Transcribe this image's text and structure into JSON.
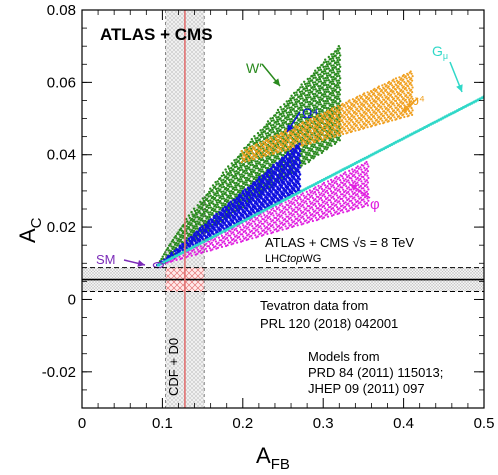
{
  "chart_data": {
    "type": "scatter",
    "title": "ATLAS + CMS",
    "xlabel": "A",
    "xlabel_sub": "FB",
    "ylabel": "A",
    "ylabel_sub": "C",
    "xlim": [
      0,
      0.5
    ],
    "ylim": [
      -0.03,
      0.08
    ],
    "xticks": [
      {
        "v": 0,
        "label": "0"
      },
      {
        "v": 0.1,
        "label": "0.1"
      },
      {
        "v": 0.2,
        "label": "0.2"
      },
      {
        "v": 0.3,
        "label": "0.3"
      },
      {
        "v": 0.4,
        "label": "0.4"
      },
      {
        "v": 0.5,
        "label": "0.5"
      }
    ],
    "yticks": [
      {
        "v": -0.02,
        "label": "-0.02"
      },
      {
        "v": 0,
        "label": "0"
      },
      {
        "v": 0.02,
        "label": "0.02"
      },
      {
        "v": 0.04,
        "label": "0.04"
      },
      {
        "v": 0.06,
        "label": "0.06"
      },
      {
        "v": 0.08,
        "label": "0.08"
      }
    ],
    "grid": false,
    "measurements": {
      "lhc_value": 0.0055,
      "lhc_band": [
        0.0022,
        0.0088
      ],
      "tevatron_value": 0.128,
      "tevatron_band": [
        0.104,
        0.152
      ],
      "sm_point": {
        "x": 0.095,
        "y": 0.0095
      }
    },
    "series": [
      {
        "name": "W′",
        "color": "#2a8a1e",
        "x_range": [
          0.095,
          0.32
        ],
        "y_low_end": 0.044,
        "y_high_end": 0.07
      },
      {
        "name": "Ω⁴",
        "color": "#1010e0",
        "x_range": [
          0.095,
          0.27
        ],
        "y_low_end": 0.03,
        "y_high_end": 0.043
      },
      {
        "name": "ω⁴",
        "color": "#f0a020",
        "x_range": [
          0.2,
          0.41
        ],
        "y_low_end": 0.038,
        "y_high_end": 0.063
      },
      {
        "name": "φ",
        "color": "#e020e0",
        "x_range": [
          0.095,
          0.355
        ],
        "y_low_end": 0.026,
        "y_high_end": 0.038
      },
      {
        "name": "G",
        "name_sub": "μ",
        "color": "#30d8c8",
        "x_range": [
          0.095,
          0.5
        ],
        "y_low_end": 0.056,
        "y_high_end": 0.056
      }
    ],
    "annotations": {
      "sm": "SM",
      "lhc_l1": "ATLAS + CMS √s = 8 TeV",
      "lhc_l2_pre": "LHC",
      "lhc_l2_it": "top",
      "lhc_l2_post": "WG",
      "tev_l1": "Tevatron data from",
      "tev_l2": "PRL 120 (2018) 042001",
      "models_l1": "Models from",
      "models_l2": "PRD 84 (2011) 115013;",
      "models_l3": "JHEP 09 (2011) 097",
      "cdf": "CDF + D0"
    }
  }
}
